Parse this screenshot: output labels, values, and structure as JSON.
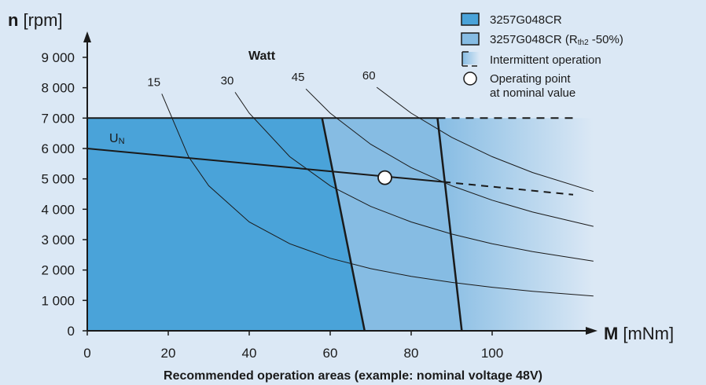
{
  "chart_data": {
    "type": "area",
    "title": "Recommended operation areas (example: nominal voltage 48V)",
    "y_axis": {
      "label_bold": "n",
      "label_unit": "[rpm]",
      "range": [
        0,
        9000
      ],
      "ticks": [
        0,
        1000,
        2000,
        3000,
        4000,
        5000,
        6000,
        7000,
        8000,
        9000
      ],
      "tick_labels": [
        "0",
        "1 000",
        "2 000",
        "3 000",
        "4 000",
        "5 000",
        "6 000",
        "7 000",
        "8 000",
        "9 000"
      ]
    },
    "x_axis": {
      "label_bold": "M",
      "label_unit": "[mNm]",
      "range": [
        0,
        120
      ],
      "ticks": [
        0,
        20,
        40,
        60,
        80,
        100
      ],
      "tick_labels": [
        "0",
        "20",
        "40",
        "60",
        "80",
        "100"
      ]
    },
    "regions": [
      {
        "name": "3257G048CR",
        "color": "#4aa3d9",
        "polygon": [
          [
            0,
            0
          ],
          [
            0,
            7000
          ],
          [
            58,
            7000
          ],
          [
            68.5,
            0
          ]
        ]
      },
      {
        "name": "3257G048CR (R_th2 -50%)",
        "color": "#86bce3",
        "polygon": [
          [
            58,
            7000
          ],
          [
            86.5,
            7000
          ],
          [
            92.5,
            0
          ],
          [
            68.5,
            0
          ]
        ]
      }
    ],
    "intermittent_fade": {
      "color_from": "#86bce3",
      "color_to": "#dbe8f5",
      "x_range": [
        86.5,
        125
      ]
    },
    "max_speed_line": {
      "y": 7000,
      "x_solid": [
        0,
        86.5
      ],
      "x_dashed": [
        86.5,
        120
      ]
    },
    "torque_zero_dashed": {
      "x": [
        92.5,
        118
      ]
    },
    "nominal_voltage_line": {
      "label": "U",
      "label_sub": "N",
      "points": [
        [
          0,
          6000
        ],
        [
          88,
          4900
        ]
      ],
      "dashed_points": [
        [
          88,
          4900
        ],
        [
          120,
          4480
        ]
      ]
    },
    "operating_point": {
      "x": 73.5,
      "y": 5040
    },
    "power_curves": {
      "unit_label": "Watt",
      "curves": [
        {
          "watt": "15",
          "label": "15",
          "points": [
            [
              18.4,
              7800
            ],
            [
              25,
              5731
            ],
            [
              30,
              4775
            ],
            [
              40,
              3581
            ],
            [
              50,
              2865
            ],
            [
              60,
              2387
            ],
            [
              70,
              2046
            ],
            [
              80,
              1790
            ],
            [
              90,
              1592
            ],
            [
              100,
              1432
            ],
            [
              110,
              1302
            ],
            [
              125,
              1146
            ]
          ]
        },
        {
          "watt": "30",
          "label": "30",
          "points": [
            [
              36.5,
              7850
            ],
            [
              40,
              7162
            ],
            [
              50,
              5730
            ],
            [
              60,
              4775
            ],
            [
              70,
              4093
            ],
            [
              80,
              3581
            ],
            [
              90,
              3183
            ],
            [
              100,
              2865
            ],
            [
              110,
              2604
            ],
            [
              125,
              2292
            ]
          ]
        },
        {
          "watt": "45",
          "label": "45",
          "points": [
            [
              54,
              7960
            ],
            [
              60,
              7162
            ],
            [
              70,
              6139
            ],
            [
              80,
              5372
            ],
            [
              90,
              4775
            ],
            [
              100,
              4297
            ],
            [
              110,
              3907
            ],
            [
              125,
              3438
            ]
          ]
        },
        {
          "watt": "60",
          "label": "60",
          "points": [
            [
              71.5,
              8015
            ],
            [
              80,
              7162
            ],
            [
              90,
              6366
            ],
            [
              100,
              5730
            ],
            [
              110,
              5209
            ],
            [
              125,
              4584
            ]
          ]
        }
      ]
    },
    "legend": {
      "position": "top-right",
      "items": [
        {
          "key": "solid",
          "color": "#4aa3d9",
          "text": "3257G048CR"
        },
        {
          "key": "light",
          "color": "#86bce3",
          "text_main": "3257G048CR (R",
          "text_sub": "th2",
          "text_tail": " -50%)"
        },
        {
          "key": "intermittent",
          "text": "Intermittent operation"
        },
        {
          "key": "point",
          "text_line1": "Operating point",
          "text_line2": "at nominal value"
        }
      ]
    }
  }
}
